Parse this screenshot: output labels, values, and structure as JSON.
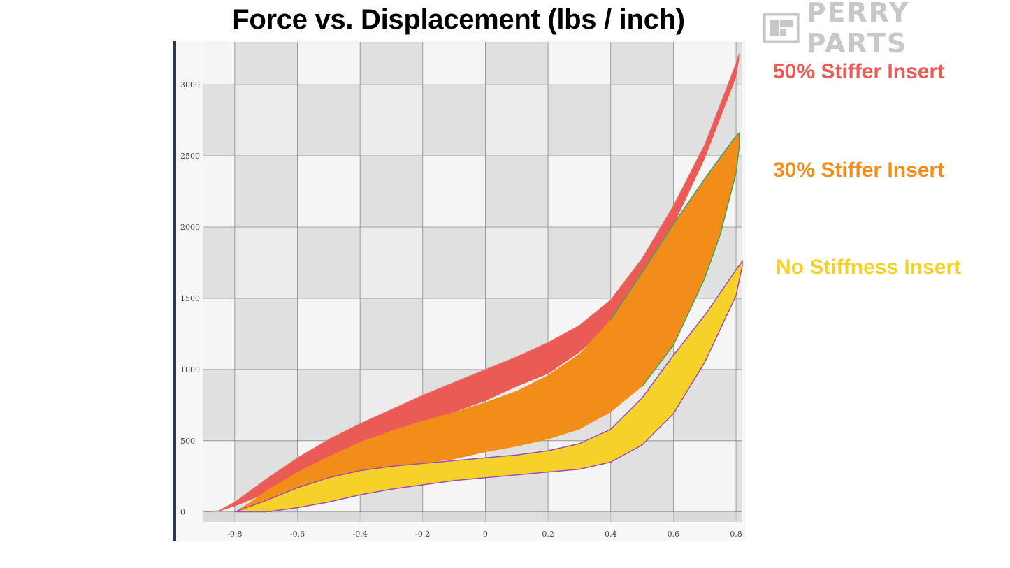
{
  "title": "Force vs. Displacement (lbs / inch)",
  "logo": {
    "text": "PERRY PARTS",
    "icon": "perry-parts-logo-icon"
  },
  "legend_position": "right",
  "colors": {
    "stiff50": "#ea5b55",
    "stiff30": "#f28d1a",
    "none": "#f5d22a",
    "green_outline": "#3aa564",
    "purple_outline": "#9b4fb5",
    "band_dark": "#dcdcdc",
    "band_light": "#f5f5f5",
    "grid": "#8a8a8a"
  },
  "chart_data": {
    "type": "area",
    "title": "Force vs. Displacement (lbs / inch)",
    "xlabel": "",
    "ylabel": "",
    "xlim": [
      -0.9,
      0.82
    ],
    "ylim": [
      -70,
      3300
    ],
    "x_ticks": [
      "-0.8",
      "-0.6",
      "-0.4",
      "-0.2",
      "0",
      "0.2",
      "0.4",
      "0.6",
      "0.8"
    ],
    "y_ticks": [
      "0",
      "500",
      "1000",
      "1500",
      "2000",
      "2500",
      "3000"
    ],
    "grid": true,
    "series": [
      {
        "name": "50% Stiffer Insert",
        "upper": [
          [
            -0.9,
            0
          ],
          [
            -0.85,
            10
          ],
          [
            -0.8,
            70
          ],
          [
            -0.7,
            230
          ],
          [
            -0.6,
            380
          ],
          [
            -0.5,
            510
          ],
          [
            -0.4,
            620
          ],
          [
            -0.3,
            720
          ],
          [
            -0.2,
            820
          ],
          [
            -0.1,
            910
          ],
          [
            0,
            1000
          ],
          [
            0.1,
            1090
          ],
          [
            0.2,
            1190
          ],
          [
            0.3,
            1310
          ],
          [
            0.4,
            1490
          ],
          [
            0.5,
            1780
          ],
          [
            0.6,
            2150
          ],
          [
            0.7,
            2580
          ],
          [
            0.8,
            3150
          ],
          [
            0.81,
            3220
          ]
        ],
        "lower": [
          [
            0.81,
            3180
          ],
          [
            0.8,
            3050
          ],
          [
            0.7,
            2480
          ],
          [
            0.6,
            2010
          ],
          [
            0.5,
            1650
          ],
          [
            0.4,
            1320
          ],
          [
            0.3,
            1120
          ],
          [
            0.2,
            970
          ],
          [
            0.1,
            880
          ],
          [
            0,
            780
          ],
          [
            -0.1,
            700
          ],
          [
            -0.2,
            610
          ],
          [
            -0.3,
            520
          ],
          [
            -0.4,
            420
          ],
          [
            -0.5,
            320
          ],
          [
            -0.6,
            220
          ],
          [
            -0.7,
            130
          ],
          [
            -0.8,
            40
          ],
          [
            -0.85,
            5
          ],
          [
            -0.9,
            0
          ]
        ]
      },
      {
        "name": "30% Stiffer Insert",
        "upper": [
          [
            -0.8,
            0
          ],
          [
            -0.75,
            70
          ],
          [
            -0.7,
            150
          ],
          [
            -0.6,
            280
          ],
          [
            -0.5,
            390
          ],
          [
            -0.4,
            490
          ],
          [
            -0.3,
            570
          ],
          [
            -0.2,
            640
          ],
          [
            -0.1,
            700
          ],
          [
            0,
            770
          ],
          [
            0.1,
            850
          ],
          [
            0.2,
            960
          ],
          [
            0.3,
            1110
          ],
          [
            0.4,
            1350
          ],
          [
            0.5,
            1680
          ],
          [
            0.6,
            2020
          ],
          [
            0.7,
            2340
          ],
          [
            0.8,
            2640
          ],
          [
            0.81,
            2660
          ]
        ],
        "lower": [
          [
            0.81,
            2560
          ],
          [
            0.8,
            2380
          ],
          [
            0.75,
            1950
          ],
          [
            0.7,
            1640
          ],
          [
            0.6,
            1170
          ],
          [
            0.5,
            880
          ],
          [
            0.4,
            700
          ],
          [
            0.3,
            580
          ],
          [
            0.2,
            510
          ],
          [
            0.1,
            460
          ],
          [
            0,
            420
          ],
          [
            -0.1,
            370
          ],
          [
            -0.2,
            340
          ],
          [
            -0.3,
            300
          ],
          [
            -0.4,
            260
          ],
          [
            -0.5,
            200
          ],
          [
            -0.6,
            140
          ],
          [
            -0.7,
            70
          ],
          [
            -0.8,
            0
          ]
        ]
      },
      {
        "name": "No Stiffness Insert",
        "upper": [
          [
            -0.8,
            0
          ],
          [
            -0.7,
            80
          ],
          [
            -0.6,
            170
          ],
          [
            -0.5,
            240
          ],
          [
            -0.4,
            290
          ],
          [
            -0.3,
            320
          ],
          [
            -0.2,
            340
          ],
          [
            -0.1,
            360
          ],
          [
            0,
            380
          ],
          [
            0.1,
            400
          ],
          [
            0.2,
            430
          ],
          [
            0.3,
            480
          ],
          [
            0.4,
            580
          ],
          [
            0.5,
            800
          ],
          [
            0.6,
            1100
          ],
          [
            0.7,
            1380
          ],
          [
            0.8,
            1700
          ],
          [
            0.82,
            1760
          ]
        ],
        "lower": [
          [
            0.82,
            1730
          ],
          [
            0.8,
            1520
          ],
          [
            0.7,
            1050
          ],
          [
            0.6,
            690
          ],
          [
            0.5,
            470
          ],
          [
            0.4,
            350
          ],
          [
            0.3,
            300
          ],
          [
            0.2,
            280
          ],
          [
            0.1,
            260
          ],
          [
            0,
            240
          ],
          [
            -0.1,
            220
          ],
          [
            -0.2,
            190
          ],
          [
            -0.3,
            160
          ],
          [
            -0.4,
            120
          ],
          [
            -0.5,
            70
          ],
          [
            -0.6,
            30
          ],
          [
            -0.7,
            0
          ],
          [
            -0.8,
            0
          ]
        ]
      }
    ]
  }
}
